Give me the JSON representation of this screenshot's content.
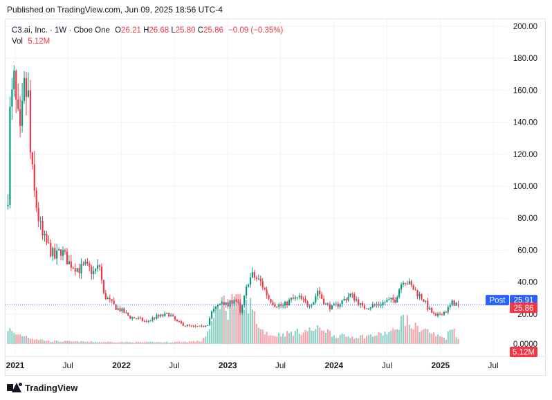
{
  "header": {
    "published": "Published on TradingView.com, Jun 09, 2025 18:56 UTC-4"
  },
  "legend": {
    "symbol": "C3.ai, Inc.",
    "interval": "1W",
    "exchange": "Cboe One",
    "open_label": "O",
    "open": "26.21",
    "high_label": "H",
    "high": "26.68",
    "low_label": "L",
    "low": "25.80",
    "close_label": "C",
    "close": "25.86",
    "change": "−0.09 (−0.35%)",
    "vol_label": "Vol",
    "vol": "5.12M"
  },
  "badges": {
    "post_label": "Post",
    "post_price": "25.91",
    "last_price": "25.86",
    "volume": "5.12M"
  },
  "footer": {
    "brand": "TradingView"
  },
  "colors": {
    "up": "#089981",
    "down": "#f23645",
    "post": "#2962ff",
    "grid": "#f0f3fa",
    "text": "#131722"
  },
  "chart_data": {
    "type": "candlestick",
    "y_ticks": [
      "200.00",
      "180.00",
      "160.00",
      "140.00",
      "120.00",
      "100.00",
      "80.00",
      "60.00",
      "40.00",
      "20.00"
    ],
    "volume_tick": "0.0000",
    "ylim": [
      0,
      200
    ],
    "x_ticks": [
      {
        "label": "2021",
        "date": "2021-01-01",
        "bold": true
      },
      {
        "label": "Jul",
        "date": "2021-07-01",
        "bold": false
      },
      {
        "label": "2022",
        "date": "2022-01-01",
        "bold": true
      },
      {
        "label": "Jul",
        "date": "2022-07-01",
        "bold": false
      },
      {
        "label": "2023",
        "date": "2023-01-01",
        "bold": true
      },
      {
        "label": "Jul",
        "date": "2023-07-01",
        "bold": false
      },
      {
        "label": "2024",
        "date": "2024-01-01",
        "bold": true
      },
      {
        "label": "Jul",
        "date": "2024-07-01",
        "bold": false
      },
      {
        "label": "2025",
        "date": "2025-01-01",
        "bold": true
      },
      {
        "label": "Jul",
        "date": "2025-07-01",
        "bold": false
      }
    ],
    "series_start": "2020-12-07",
    "interval_days": 7,
    "last_close": 25.86,
    "close_path": [
      [
        0,
        95
      ],
      [
        1,
        145
      ],
      [
        3,
        165
      ],
      [
        4,
        150
      ],
      [
        6,
        130
      ],
      [
        8,
        160
      ],
      [
        10,
        155
      ],
      [
        11,
        120
      ],
      [
        13,
        95
      ],
      [
        15,
        80
      ],
      [
        17,
        68
      ],
      [
        20,
        62
      ],
      [
        23,
        55
      ],
      [
        26,
        60
      ],
      [
        30,
        52
      ],
      [
        35,
        48
      ],
      [
        38,
        50
      ],
      [
        42,
        46
      ],
      [
        45,
        50
      ],
      [
        47,
        32
      ],
      [
        50,
        28
      ],
      [
        53,
        24
      ],
      [
        56,
        22
      ],
      [
        60,
        18
      ],
      [
        64,
        17
      ],
      [
        68,
        15
      ],
      [
        72,
        18
      ],
      [
        76,
        19
      ],
      [
        79,
        20
      ],
      [
        83,
        15
      ],
      [
        87,
        13
      ],
      [
        91,
        12
      ],
      [
        95,
        12
      ],
      [
        98,
        14
      ],
      [
        100,
        21
      ],
      [
        103,
        25
      ],
      [
        105,
        28
      ],
      [
        108,
        25
      ],
      [
        111,
        30
      ],
      [
        113,
        26
      ],
      [
        114,
        20
      ],
      [
        116,
        30
      ],
      [
        118,
        41
      ],
      [
        120,
        44
      ],
      [
        124,
        40
      ],
      [
        128,
        30
      ],
      [
        131,
        26
      ],
      [
        135,
        25
      ],
      [
        139,
        29
      ],
      [
        143,
        30
      ],
      [
        147,
        26
      ],
      [
        150,
        28
      ],
      [
        152,
        35
      ],
      [
        154,
        30
      ],
      [
        156,
        26
      ],
      [
        159,
        24
      ],
      [
        162,
        26
      ],
      [
        165,
        29
      ],
      [
        168,
        32
      ],
      [
        171,
        29
      ],
      [
        174,
        24
      ],
      [
        178,
        25
      ],
      [
        182,
        26
      ],
      [
        186,
        28
      ],
      [
        190,
        29
      ],
      [
        192,
        36
      ],
      [
        194,
        42
      ],
      [
        196,
        40
      ],
      [
        198,
        37
      ],
      [
        201,
        33
      ],
      [
        204,
        29
      ],
      [
        206,
        24
      ],
      [
        208,
        21
      ],
      [
        210,
        18
      ],
      [
        212,
        20
      ],
      [
        215,
        22
      ],
      [
        217,
        25
      ],
      [
        218,
        27
      ],
      [
        220,
        26.5
      ],
      [
        221,
        25.86
      ]
    ],
    "volume_path": [
      [
        0,
        22
      ],
      [
        3,
        14
      ],
      [
        8,
        12
      ],
      [
        12,
        8
      ],
      [
        20,
        4
      ],
      [
        40,
        3
      ],
      [
        60,
        2.5
      ],
      [
        80,
        2.5
      ],
      [
        95,
        4
      ],
      [
        100,
        25
      ],
      [
        104,
        65
      ],
      [
        108,
        48
      ],
      [
        110,
        70
      ],
      [
        113,
        60
      ],
      [
        116,
        44
      ],
      [
        118,
        60
      ],
      [
        121,
        40
      ],
      [
        124,
        20
      ],
      [
        130,
        12
      ],
      [
        140,
        16
      ],
      [
        150,
        20
      ],
      [
        155,
        22
      ],
      [
        160,
        12
      ],
      [
        170,
        10
      ],
      [
        180,
        12
      ],
      [
        190,
        18
      ],
      [
        194,
        38
      ],
      [
        198,
        25
      ],
      [
        205,
        20
      ],
      [
        210,
        12
      ],
      [
        215,
        8
      ],
      [
        218,
        28
      ],
      [
        221,
        6
      ]
    ],
    "volume_max": 70
  }
}
